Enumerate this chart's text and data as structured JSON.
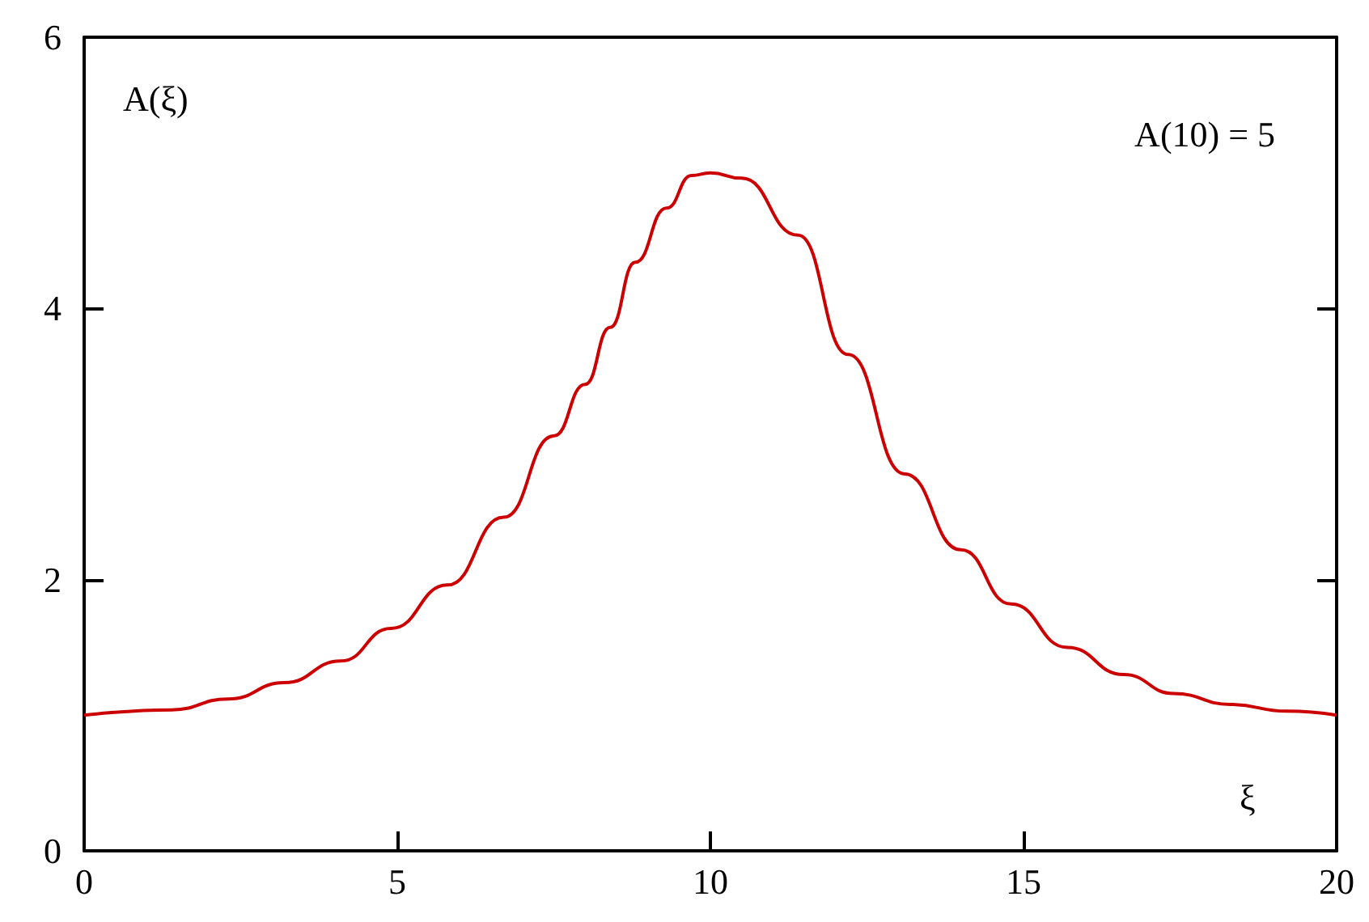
{
  "chart_data": {
    "type": "line",
    "ylabel": "A(ξ)",
    "xlabel": "ξ",
    "annotations": [
      "A(10) = 5"
    ],
    "series": [
      {
        "color": "#cc0000",
        "x": [
          0,
          1.4,
          2.3,
          3.2,
          4.1,
          4.9,
          5.8,
          6.7,
          7.5,
          8.0,
          8.4,
          8.8,
          9.3,
          9.7,
          10,
          10.5,
          11.4,
          12.2,
          13.1,
          14.0,
          14.8,
          15.7,
          16.6,
          17.4,
          18.3,
          19.2,
          20
        ],
        "values": [
          1.0,
          1.04,
          1.12,
          1.24,
          1.4,
          1.64,
          1.96,
          2.46,
          3.06,
          3.44,
          3.86,
          4.34,
          4.74,
          4.98,
          5.0,
          4.96,
          4.54,
          3.66,
          2.78,
          2.22,
          1.82,
          1.5,
          1.3,
          1.16,
          1.08,
          1.03,
          1.0
        ]
      }
    ],
    "xlim": [
      0,
      20
    ],
    "xticks": [
      0,
      5,
      10,
      15,
      20
    ],
    "ylim": [
      0,
      6
    ],
    "yticks": [
      0,
      2,
      4,
      6
    ],
    "marker": "none",
    "line_style": "solid"
  }
}
